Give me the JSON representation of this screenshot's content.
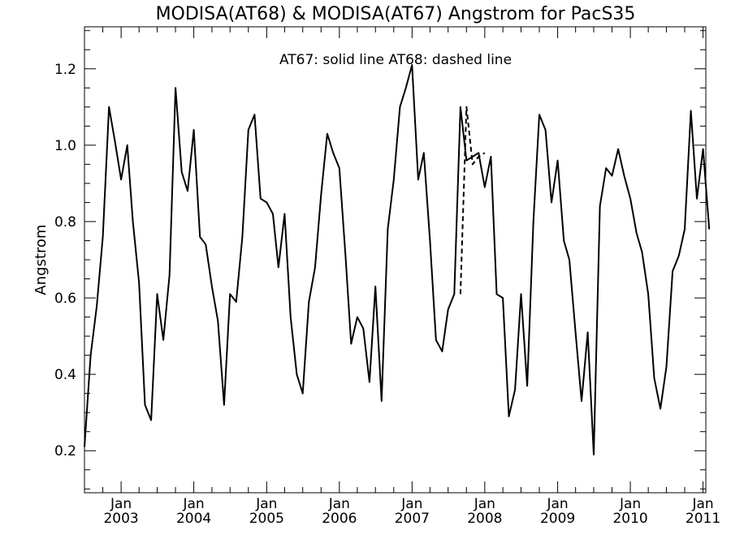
{
  "chart_data": {
    "type": "line",
    "title": "MODISA(AT68) & MODISA(AT67)  Angstrom for PacS35",
    "annotation": "AT67: solid line   AT68: dashed line",
    "ylabel": "Angstrom",
    "xlabel": "",
    "xlim": [
      "2002-07-01",
      "2011-01-15"
    ],
    "ylim": [
      0.09,
      1.31
    ],
    "yticks": [
      0.2,
      0.4,
      0.6,
      0.8,
      1.0,
      1.2
    ],
    "ytick_labels": [
      "0.2",
      "0.4",
      "0.6",
      "0.8",
      "1.0",
      "1.2"
    ],
    "xticks": [
      {
        "date": "2003-01-01",
        "month": "Jan",
        "year": "2003"
      },
      {
        "date": "2004-01-01",
        "month": "Jan",
        "year": "2004"
      },
      {
        "date": "2005-01-01",
        "month": "Jan",
        "year": "2005"
      },
      {
        "date": "2006-01-01",
        "month": "Jan",
        "year": "2006"
      },
      {
        "date": "2007-01-01",
        "month": "Jan",
        "year": "2007"
      },
      {
        "date": "2008-01-01",
        "month": "Jan",
        "year": "2008"
      },
      {
        "date": "2009-01-01",
        "month": "Jan",
        "year": "2009"
      },
      {
        "date": "2010-01-01",
        "month": "Jan",
        "year": "2010"
      },
      {
        "date": "2011-01-01",
        "month": "Jan",
        "year": "2011"
      }
    ],
    "series": [
      {
        "name": "AT67",
        "style": "solid",
        "color": "#000000",
        "x": [
          "2002-07-01",
          "2002-08-01",
          "2002-09-01",
          "2002-10-01",
          "2002-11-01",
          "2002-12-01",
          "2003-01-01",
          "2003-02-01",
          "2003-03-01",
          "2003-04-01",
          "2003-05-01",
          "2003-06-01",
          "2003-07-01",
          "2003-08-01",
          "2003-09-01",
          "2003-10-01",
          "2003-11-01",
          "2003-12-01",
          "2004-01-01",
          "2004-02-01",
          "2004-03-01",
          "2004-04-01",
          "2004-05-01",
          "2004-06-01",
          "2004-07-01",
          "2004-08-01",
          "2004-09-01",
          "2004-10-01",
          "2004-11-01",
          "2004-12-01",
          "2005-01-01",
          "2005-02-01",
          "2005-03-01",
          "2005-04-01",
          "2005-05-01",
          "2005-06-01",
          "2005-07-01",
          "2005-08-01",
          "2005-09-01",
          "2005-10-01",
          "2005-11-01",
          "2005-12-01",
          "2006-01-01",
          "2006-02-01",
          "2006-03-01",
          "2006-04-01",
          "2006-05-01",
          "2006-06-01",
          "2006-07-01",
          "2006-08-01",
          "2006-09-01",
          "2006-10-01",
          "2006-11-01",
          "2006-12-01",
          "2007-01-01",
          "2007-02-01",
          "2007-03-01",
          "2007-04-01",
          "2007-05-01",
          "2007-06-01",
          "2007-07-01",
          "2007-08-01",
          "2007-09-01",
          "2007-10-01",
          "2007-11-01",
          "2007-12-01",
          "2008-01-01",
          "2008-02-01",
          "2008-03-01",
          "2008-04-01",
          "2008-05-01",
          "2008-06-01",
          "2008-07-01",
          "2008-08-01",
          "2008-09-01",
          "2008-10-01",
          "2008-11-01",
          "2008-12-01",
          "2009-01-01",
          "2009-02-01",
          "2009-03-01",
          "2009-04-01",
          "2009-05-01",
          "2009-06-01",
          "2009-07-01",
          "2009-08-01",
          "2009-09-01",
          "2009-10-01",
          "2009-11-01",
          "2009-12-01",
          "2010-01-01",
          "2010-02-01",
          "2010-03-01",
          "2010-04-01",
          "2010-05-01",
          "2010-06-01",
          "2010-07-01",
          "2010-08-01",
          "2010-09-01",
          "2010-10-01",
          "2010-11-01",
          "2010-12-01",
          "2011-01-01",
          "2011-02-01"
        ],
        "y": [
          0.21,
          0.45,
          0.58,
          0.76,
          1.1,
          1.01,
          0.91,
          1.0,
          0.8,
          0.64,
          0.32,
          0.28,
          0.61,
          0.49,
          0.66,
          1.15,
          0.93,
          0.88,
          1.04,
          0.76,
          0.74,
          0.63,
          0.54,
          0.32,
          0.61,
          0.59,
          0.76,
          1.04,
          1.08,
          0.86,
          0.85,
          0.82,
          0.68,
          0.82,
          0.55,
          0.4,
          0.35,
          0.59,
          0.68,
          0.87,
          1.03,
          0.98,
          0.94,
          0.71,
          0.48,
          0.55,
          0.52,
          0.38,
          0.63,
          0.33,
          0.78,
          0.91,
          1.1,
          1.15,
          1.21,
          0.91,
          0.98,
          0.75,
          0.49,
          0.46,
          0.57,
          0.61,
          1.1,
          0.96,
          0.97,
          0.98,
          0.89,
          0.97,
          0.61,
          0.6,
          0.29,
          0.36,
          0.61,
          0.37,
          0.8,
          1.08,
          1.04,
          0.85,
          0.96,
          0.75,
          0.7,
          0.51,
          0.33,
          0.51,
          0.19,
          0.84,
          0.94,
          0.92,
          0.99,
          0.92,
          0.86,
          0.77,
          0.72,
          0.61,
          0.39,
          0.31,
          0.42,
          0.67,
          0.71,
          0.78,
          1.09,
          0.86,
          0.99,
          0.78
        ]
      },
      {
        "name": "AT68",
        "style": "dashed",
        "color": "#000000",
        "x": [
          "2007-09-01",
          "2007-10-01",
          "2007-11-01",
          "2007-12-01",
          "2008-01-01"
        ],
        "y": [
          0.61,
          1.1,
          0.95,
          0.97,
          0.98
        ]
      }
    ]
  }
}
